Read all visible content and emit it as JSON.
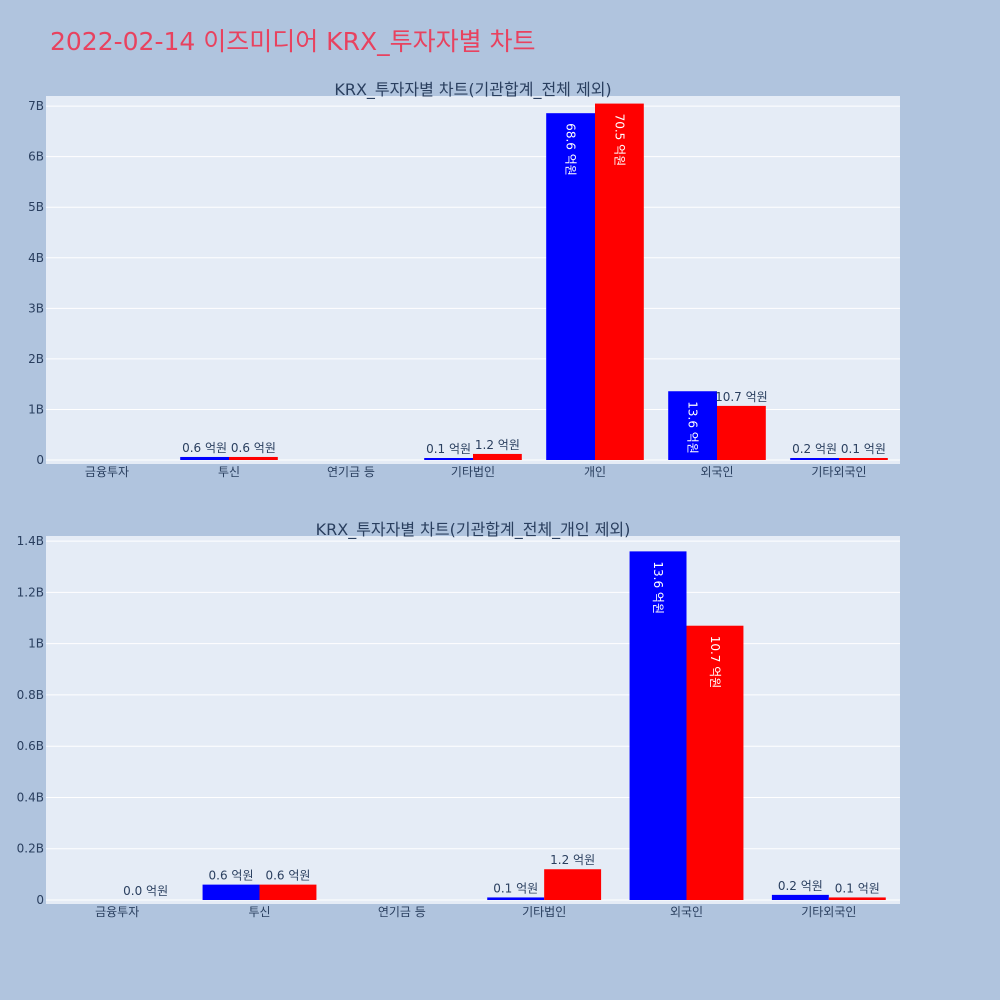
{
  "title": "2022-02-14 이즈미디어 KRX_투자자별 차트",
  "colors": {
    "background": "#b0c4de",
    "plot": "#e5ecf6",
    "title": "#e8425f",
    "series_a": "#0000ff",
    "series_b": "#ff0000"
  },
  "chart_data": [
    {
      "type": "bar",
      "title": "KRX_투자자별 차트(기관합계_전체 제외)",
      "categories": [
        "금융투자",
        "투신",
        "연기금 등",
        "기타법인",
        "개인",
        "외국인",
        "기타외국인"
      ],
      "ylim": [
        0,
        7200000000
      ],
      "yticks": [
        0,
        1000000000,
        2000000000,
        3000000000,
        4000000000,
        5000000000,
        6000000000,
        7000000000
      ],
      "ytick_labels": [
        "0",
        "1B",
        "2B",
        "3B",
        "4B",
        "5B",
        "6B",
        "7B"
      ],
      "grid": true,
      "series": [
        {
          "color": "#0000ff",
          "values": [
            0,
            60000000,
            0,
            10000000,
            6860000000,
            1360000000,
            20000000
          ],
          "labels": [
            "",
            "0.6 억원",
            "",
            "0.1 억원",
            "68.6 억원",
            "13.6 억원",
            "0.2 억원"
          ]
        },
        {
          "color": "#ff0000",
          "values": [
            0,
            60000000,
            0,
            120000000,
            7050000000,
            1070000000,
            10000000
          ],
          "labels": [
            "",
            "0.6 억원",
            "",
            "1.2 억원",
            "70.5 억원",
            "10.7 억원",
            "0.1 억원"
          ]
        }
      ]
    },
    {
      "type": "bar",
      "title": "KRX_투자자별 차트(기관합계_전체_개인 제외)",
      "categories": [
        "금융투자",
        "투신",
        "연기금 등",
        "기타법인",
        "외국인",
        "기타외국인"
      ],
      "ylim": [
        0,
        1420000000
      ],
      "yticks": [
        0,
        200000000,
        400000000,
        600000000,
        800000000,
        1000000000,
        1200000000,
        1400000000
      ],
      "ytick_labels": [
        "0",
        "0.2B",
        "0.4B",
        "0.6B",
        "0.8B",
        "1B",
        "1.2B",
        "1.4B"
      ],
      "grid": true,
      "series": [
        {
          "color": "#0000ff",
          "values": [
            0,
            60000000,
            0,
            10000000,
            1360000000,
            20000000
          ],
          "labels": [
            "",
            "0.6 억원",
            "",
            "0.1 억원",
            "13.6 억원",
            "0.2 억원"
          ]
        },
        {
          "color": "#ff0000",
          "values": [
            0,
            60000000,
            0,
            120000000,
            1070000000,
            10000000
          ],
          "labels": [
            "0.0 억원",
            "0.6 억원",
            "",
            "1.2 억원",
            "10.7 억원",
            "0.1 억원"
          ]
        }
      ]
    }
  ]
}
